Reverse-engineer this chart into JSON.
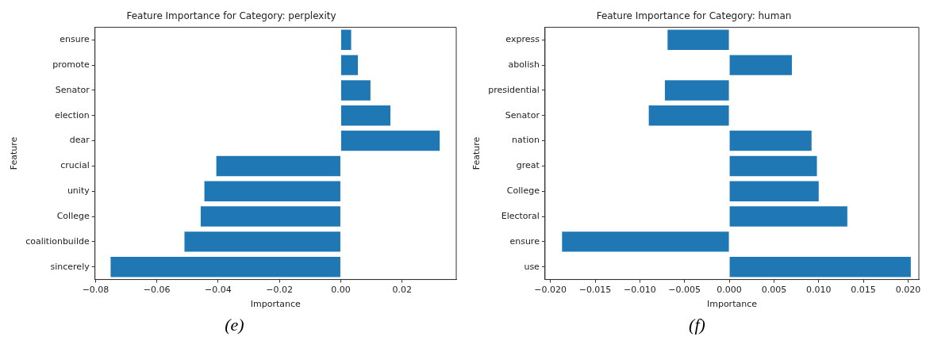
{
  "chart_data": [
    {
      "type": "bar",
      "orientation": "horizontal",
      "title": "Feature Importance for Category: perplexity",
      "xlabel": "Importance",
      "ylabel": "Feature",
      "categories": [
        "ensure",
        "promote",
        "Senator",
        "election",
        "dear",
        "crucial",
        "unity",
        "College",
        "coalitionbuilde",
        "sincerely"
      ],
      "values": [
        0.0034,
        0.0056,
        0.0097,
        0.0162,
        0.0323,
        -0.0406,
        -0.0445,
        -0.0457,
        -0.051,
        -0.0751
      ],
      "color": "#1f77b4",
      "xlim": [
        -0.0802,
        0.0377
      ],
      "xticks": [
        {
          "value": -0.08,
          "label": "−0.08"
        },
        {
          "value": -0.06,
          "label": "−0.06"
        },
        {
          "value": -0.04,
          "label": "−0.04"
        },
        {
          "value": -0.02,
          "label": "−0.02"
        },
        {
          "value": 0,
          "label": "0.00"
        },
        0.02
      ],
      "grid": false,
      "annotations": [
        "(e)"
      ]
    },
    {
      "type": "bar",
      "orientation": "horizontal",
      "title": "Feature Importance for Category: human",
      "xlabel": "Importance",
      "ylabel": "Feature",
      "categories": [
        "express",
        "abolish",
        "presidential",
        "Senator",
        "nation",
        "great",
        "College",
        "Electoral",
        "ensure",
        "use"
      ],
      "values": [
        -0.0069,
        0.007,
        -0.0072,
        -0.009,
        0.0092,
        0.0098,
        0.01,
        0.0132,
        -0.0187,
        0.0203
      ],
      "color": "#1f77b4",
      "xlim": [
        -0.0206,
        0.0212
      ],
      "xticks": [
        {
          "value": -0.02,
          "label": "−0.020"
        },
        {
          "value": -0.015,
          "label": "−0.015"
        },
        {
          "value": -0.01,
          "label": "−0.010"
        },
        {
          "value": -0.005,
          "label": "−0.005"
        },
        {
          "value": 0,
          "label": "0.000"
        },
        0.005,
        {
          "value": 0.01,
          "label": "0.010"
        },
        0.015,
        {
          "value": 0.02,
          "label": "0.020"
        }
      ],
      "grid": false,
      "annotations": [
        "(f)"
      ]
    }
  ]
}
